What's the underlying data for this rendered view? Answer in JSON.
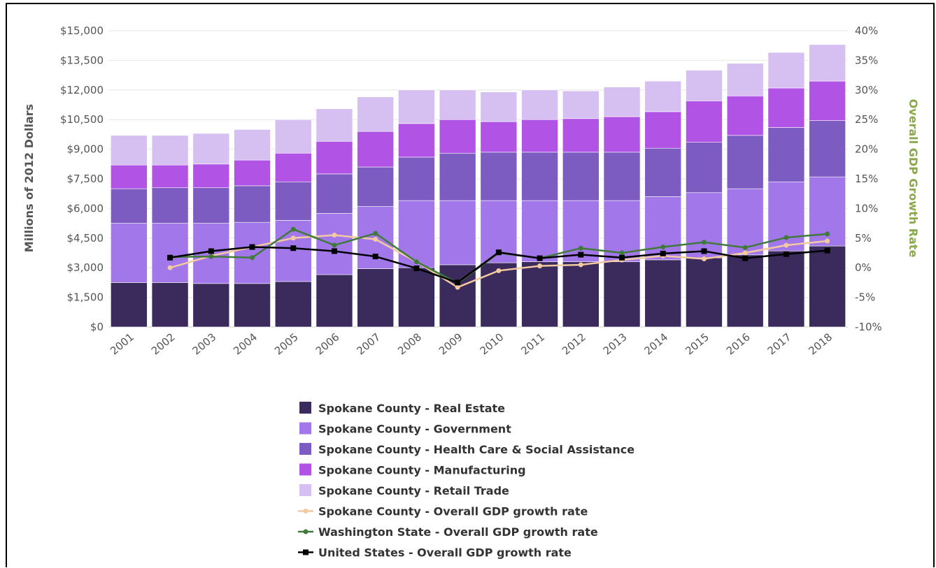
{
  "chart_data": {
    "type": "bar",
    "stacked": true,
    "categories": [
      "2001",
      "2002",
      "2003",
      "2004",
      "2005",
      "2006",
      "2007",
      "2008",
      "2009",
      "2010",
      "2011",
      "2012",
      "2013",
      "2014",
      "2015",
      "2016",
      "2017",
      "2018"
    ],
    "ylabel": "Millions of 2012 Dollars",
    "y2label": "Overall GDP Growth Rate",
    "ylim": [
      0,
      15000
    ],
    "y2lim": [
      -10,
      40
    ],
    "y_ticks": [
      "$0",
      "$1,500",
      "$3,000",
      "$4,500",
      "$6,000",
      "$7,500",
      "$9,000",
      "$10,500",
      "$12,000",
      "$13,500",
      "$15,000"
    ],
    "y2_ticks": [
      "-10%",
      "-5%",
      "0%",
      "5%",
      "10%",
      "15%",
      "20%",
      "25%",
      "30%",
      "35%",
      "40%"
    ],
    "series": [
      {
        "name": "Spokane County - Real Estate",
        "kind": "bar",
        "color": "#3b2a5c",
        "values": [
          2250,
          2250,
          2200,
          2200,
          2300,
          2650,
          2950,
          3000,
          3150,
          3250,
          3300,
          3300,
          3300,
          3400,
          3500,
          3650,
          3850,
          4100
        ]
      },
      {
        "name": "Spokane County - Government",
        "kind": "bar",
        "color": "#a277ea",
        "values": [
          3000,
          3000,
          3050,
          3100,
          3100,
          3100,
          3150,
          3400,
          3250,
          3150,
          3100,
          3100,
          3100,
          3200,
          3300,
          3350,
          3500,
          3500
        ]
      },
      {
        "name": "Spokane County - Health Care & Social Assistance",
        "kind": "bar",
        "color": "#7d5cc2",
        "values": [
          1750,
          1800,
          1800,
          1850,
          1950,
          2000,
          2000,
          2200,
          2400,
          2450,
          2450,
          2450,
          2450,
          2450,
          2550,
          2700,
          2750,
          2850
        ]
      },
      {
        "name": "Spokane County - Manufacturing",
        "kind": "bar",
        "color": "#b154e6",
        "values": [
          1200,
          1150,
          1200,
          1300,
          1450,
          1650,
          1800,
          1700,
          1700,
          1550,
          1650,
          1700,
          1800,
          1850,
          2100,
          2000,
          2000,
          2000
        ]
      },
      {
        "name": "Spokane County - Retail Trade",
        "kind": "bar",
        "color": "#d6c0f2",
        "values": [
          1500,
          1500,
          1550,
          1550,
          1700,
          1650,
          1750,
          1700,
          1500,
          1500,
          1500,
          1400,
          1500,
          1550,
          1550,
          1650,
          1800,
          1850
        ]
      },
      {
        "name": "Spokane County - Overall GDP growth rate",
        "kind": "line",
        "color": "#f2c9a0",
        "values": [
          null,
          0,
          2,
          3.5,
          5,
          5.5,
          4.8,
          1,
          -3.3,
          -0.5,
          0.3,
          0.5,
          1.3,
          2,
          1.5,
          2.5,
          3.8,
          4.5
        ]
      },
      {
        "name": "Washington State - Overall GDP growth rate",
        "kind": "line",
        "color": "#3f7a3a",
        "values": [
          null,
          1.8,
          1.9,
          1.7,
          6.5,
          3.8,
          5.8,
          1,
          -2.6,
          2.5,
          1.6,
          3.3,
          2.5,
          3.5,
          4.3,
          3.4,
          5.1,
          5.7
        ]
      },
      {
        "name": "United States - Overall GDP growth rate",
        "kind": "line",
        "color": "#000000",
        "values": [
          null,
          1.7,
          2.8,
          3.5,
          3.3,
          2.8,
          1.9,
          -0.1,
          -2.5,
          2.6,
          1.6,
          2.2,
          1.7,
          2.4,
          2.8,
          1.6,
          2.3,
          2.9
        ]
      }
    ],
    "legend_position": "bottom-center",
    "grid": true
  }
}
